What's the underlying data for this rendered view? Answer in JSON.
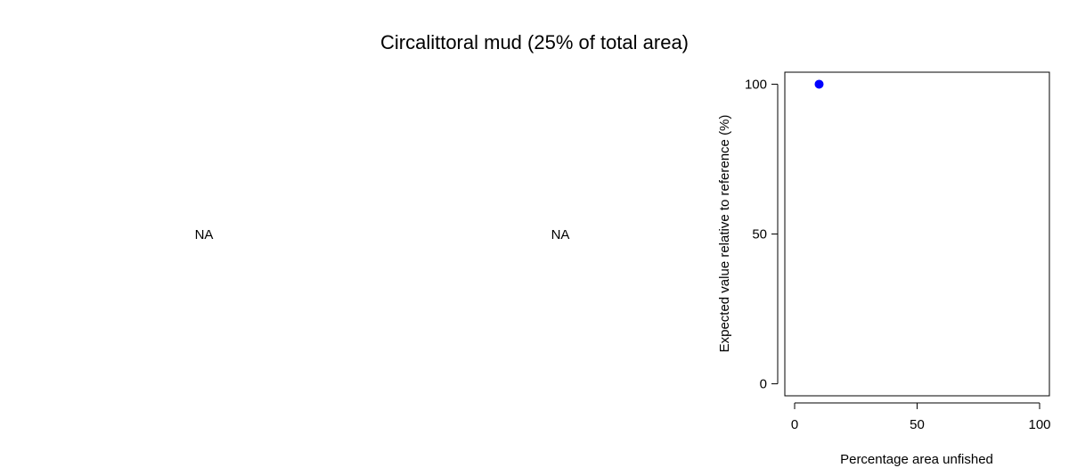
{
  "title": "Circalittoral mud (25% of total area)",
  "panels": [
    {
      "text": "NA"
    },
    {
      "text": "NA"
    }
  ],
  "chart_data": {
    "type": "scatter",
    "title": "",
    "xlabel": "Percentage area unfished",
    "ylabel": "Expected value relative to reference (%)",
    "xlim": [
      -4,
      104
    ],
    "ylim": [
      -4,
      104
    ],
    "xticks": [
      0,
      50,
      100
    ],
    "yticks": [
      0,
      50,
      100
    ],
    "grid": false,
    "series": [
      {
        "x": [
          10
        ],
        "y": [
          100
        ],
        "color": "#0000ff"
      }
    ]
  }
}
